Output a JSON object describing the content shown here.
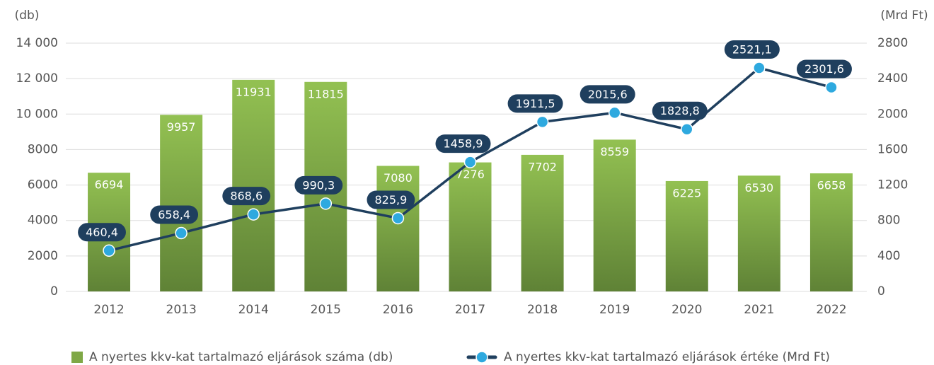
{
  "chart_data": {
    "type": "bar",
    "y_axis_label": "(db)",
    "y2_axis_label": "(Mrd Ft)",
    "categories": [
      "2012",
      "2013",
      "2014",
      "2015",
      "2016",
      "2017",
      "2018",
      "2019",
      "2020",
      "2021",
      "2022"
    ],
    "series": [
      {
        "name": "A nyertes kkv-kat tartalmazó eljárások száma (db)",
        "type": "bar",
        "color": "#7fa846",
        "values": [
          6694,
          9957,
          11931,
          11815,
          7080,
          7276,
          7702,
          8559,
          6225,
          6530,
          6658
        ]
      },
      {
        "name": "A nyertes kkv-kat tartalmazó eljárások értéke (Mrd Ft)",
        "type": "line",
        "axis": "y2",
        "color": "#1f3f5e",
        "marker_color": "#2ea9df",
        "values": [
          460.4,
          658.4,
          868.6,
          990.3,
          825.9,
          1458.9,
          1911.5,
          2015.6,
          1828.8,
          2521.1,
          2301.6
        ],
        "value_labels": [
          "460,4",
          "658,4",
          "868,6",
          "990,3",
          "825,9",
          "1458,9",
          "1911,5",
          "2015,6",
          "1828,8",
          "2521,1",
          "2301,6"
        ]
      }
    ],
    "ylim": [
      0,
      14000
    ],
    "yticks": [
      0,
      2000,
      4000,
      6000,
      8000,
      {
        "value": 10000,
        "label": "10 000"
      },
      {
        "value": 12000,
        "label": "12 000"
      },
      {
        "value": 14000,
        "label": "14 000"
      }
    ],
    "y2lim": [
      0,
      2800
    ],
    "y2ticks": [
      0,
      400,
      800,
      1200,
      1600,
      2000,
      2400,
      2800
    ],
    "grid": true,
    "legend": "bottom"
  }
}
